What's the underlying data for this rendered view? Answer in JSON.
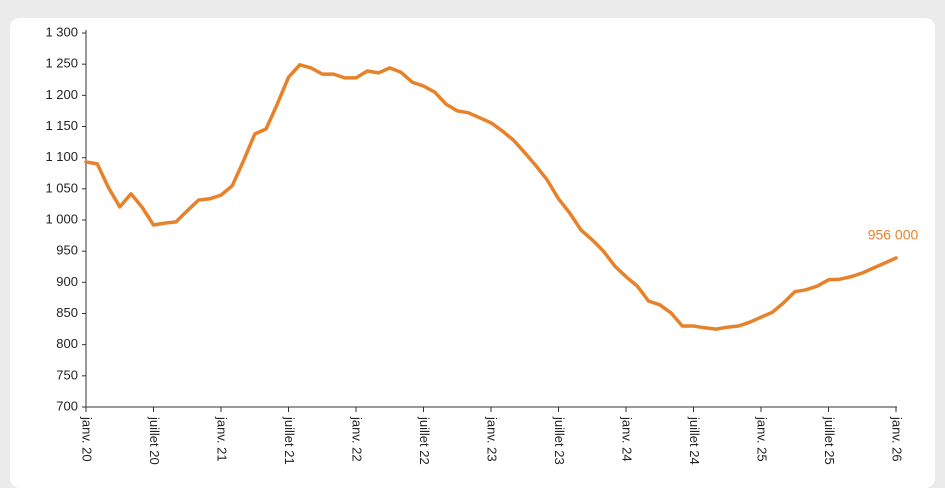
{
  "chart_data": {
    "type": "line",
    "categories": [
      "janv. 20",
      null,
      null,
      null,
      null,
      null,
      "juillet 20",
      null,
      null,
      null,
      null,
      null,
      "janv. 21",
      null,
      null,
      null,
      null,
      null,
      "juillet 21",
      null,
      null,
      null,
      null,
      null,
      "janv. 22",
      null,
      null,
      null,
      null,
      null,
      "juillet 22",
      null,
      null,
      null,
      null,
      null,
      "janv. 23",
      null,
      null,
      null,
      null,
      null,
      "juillet 23",
      null,
      null,
      null,
      null,
      null,
      "janv. 24",
      null,
      null,
      null,
      null,
      null,
      "juillet 24",
      null,
      null,
      null,
      null,
      null,
      "janv. 25",
      null,
      null,
      null,
      null,
      null,
      "juillet 25",
      null,
      null,
      null,
      null,
      null,
      "janv. 26"
    ],
    "series": [
      {
        "color": "#e8822a",
        "values": [
          1093,
          1090,
          1052,
          1021,
          1042,
          1020,
          992,
          995,
          997,
          1015,
          1032,
          1034,
          1040,
          1055,
          1095,
          1138,
          1146,
          1186,
          1229,
          1249,
          1244,
          1234,
          1234,
          1228,
          1228,
          1239,
          1236,
          1244,
          1237,
          1221,
          1215,
          1205,
          1186,
          1175,
          1172,
          1164,
          1156,
          1143,
          1128,
          1108,
          1087,
          1064,
          1034,
          1011,
          984,
          968,
          950,
          926,
          909,
          894,
          870,
          864,
          851,
          830,
          830,
          827,
          825,
          828,
          830,
          836,
          844,
          852,
          867,
          885,
          888,
          894,
          904,
          905,
          909,
          915,
          923,
          931,
          939
        ]
      }
    ],
    "annotation": "956 000",
    "ylim": [
      700,
      1300
    ],
    "yticks": [
      700,
      750,
      800,
      850,
      900,
      950,
      {
        "value": 1000,
        "label": "1 000"
      },
      {
        "value": 1050,
        "label": "1 050"
      },
      {
        "value": 1100,
        "label": "1 100"
      },
      {
        "value": 1150,
        "label": "1 150"
      },
      {
        "value": 1200,
        "label": "1 200"
      },
      {
        "value": 1250,
        "label": "1 250"
      },
      {
        "value": 1300,
        "label": "1 300"
      }
    ],
    "grid": false
  }
}
